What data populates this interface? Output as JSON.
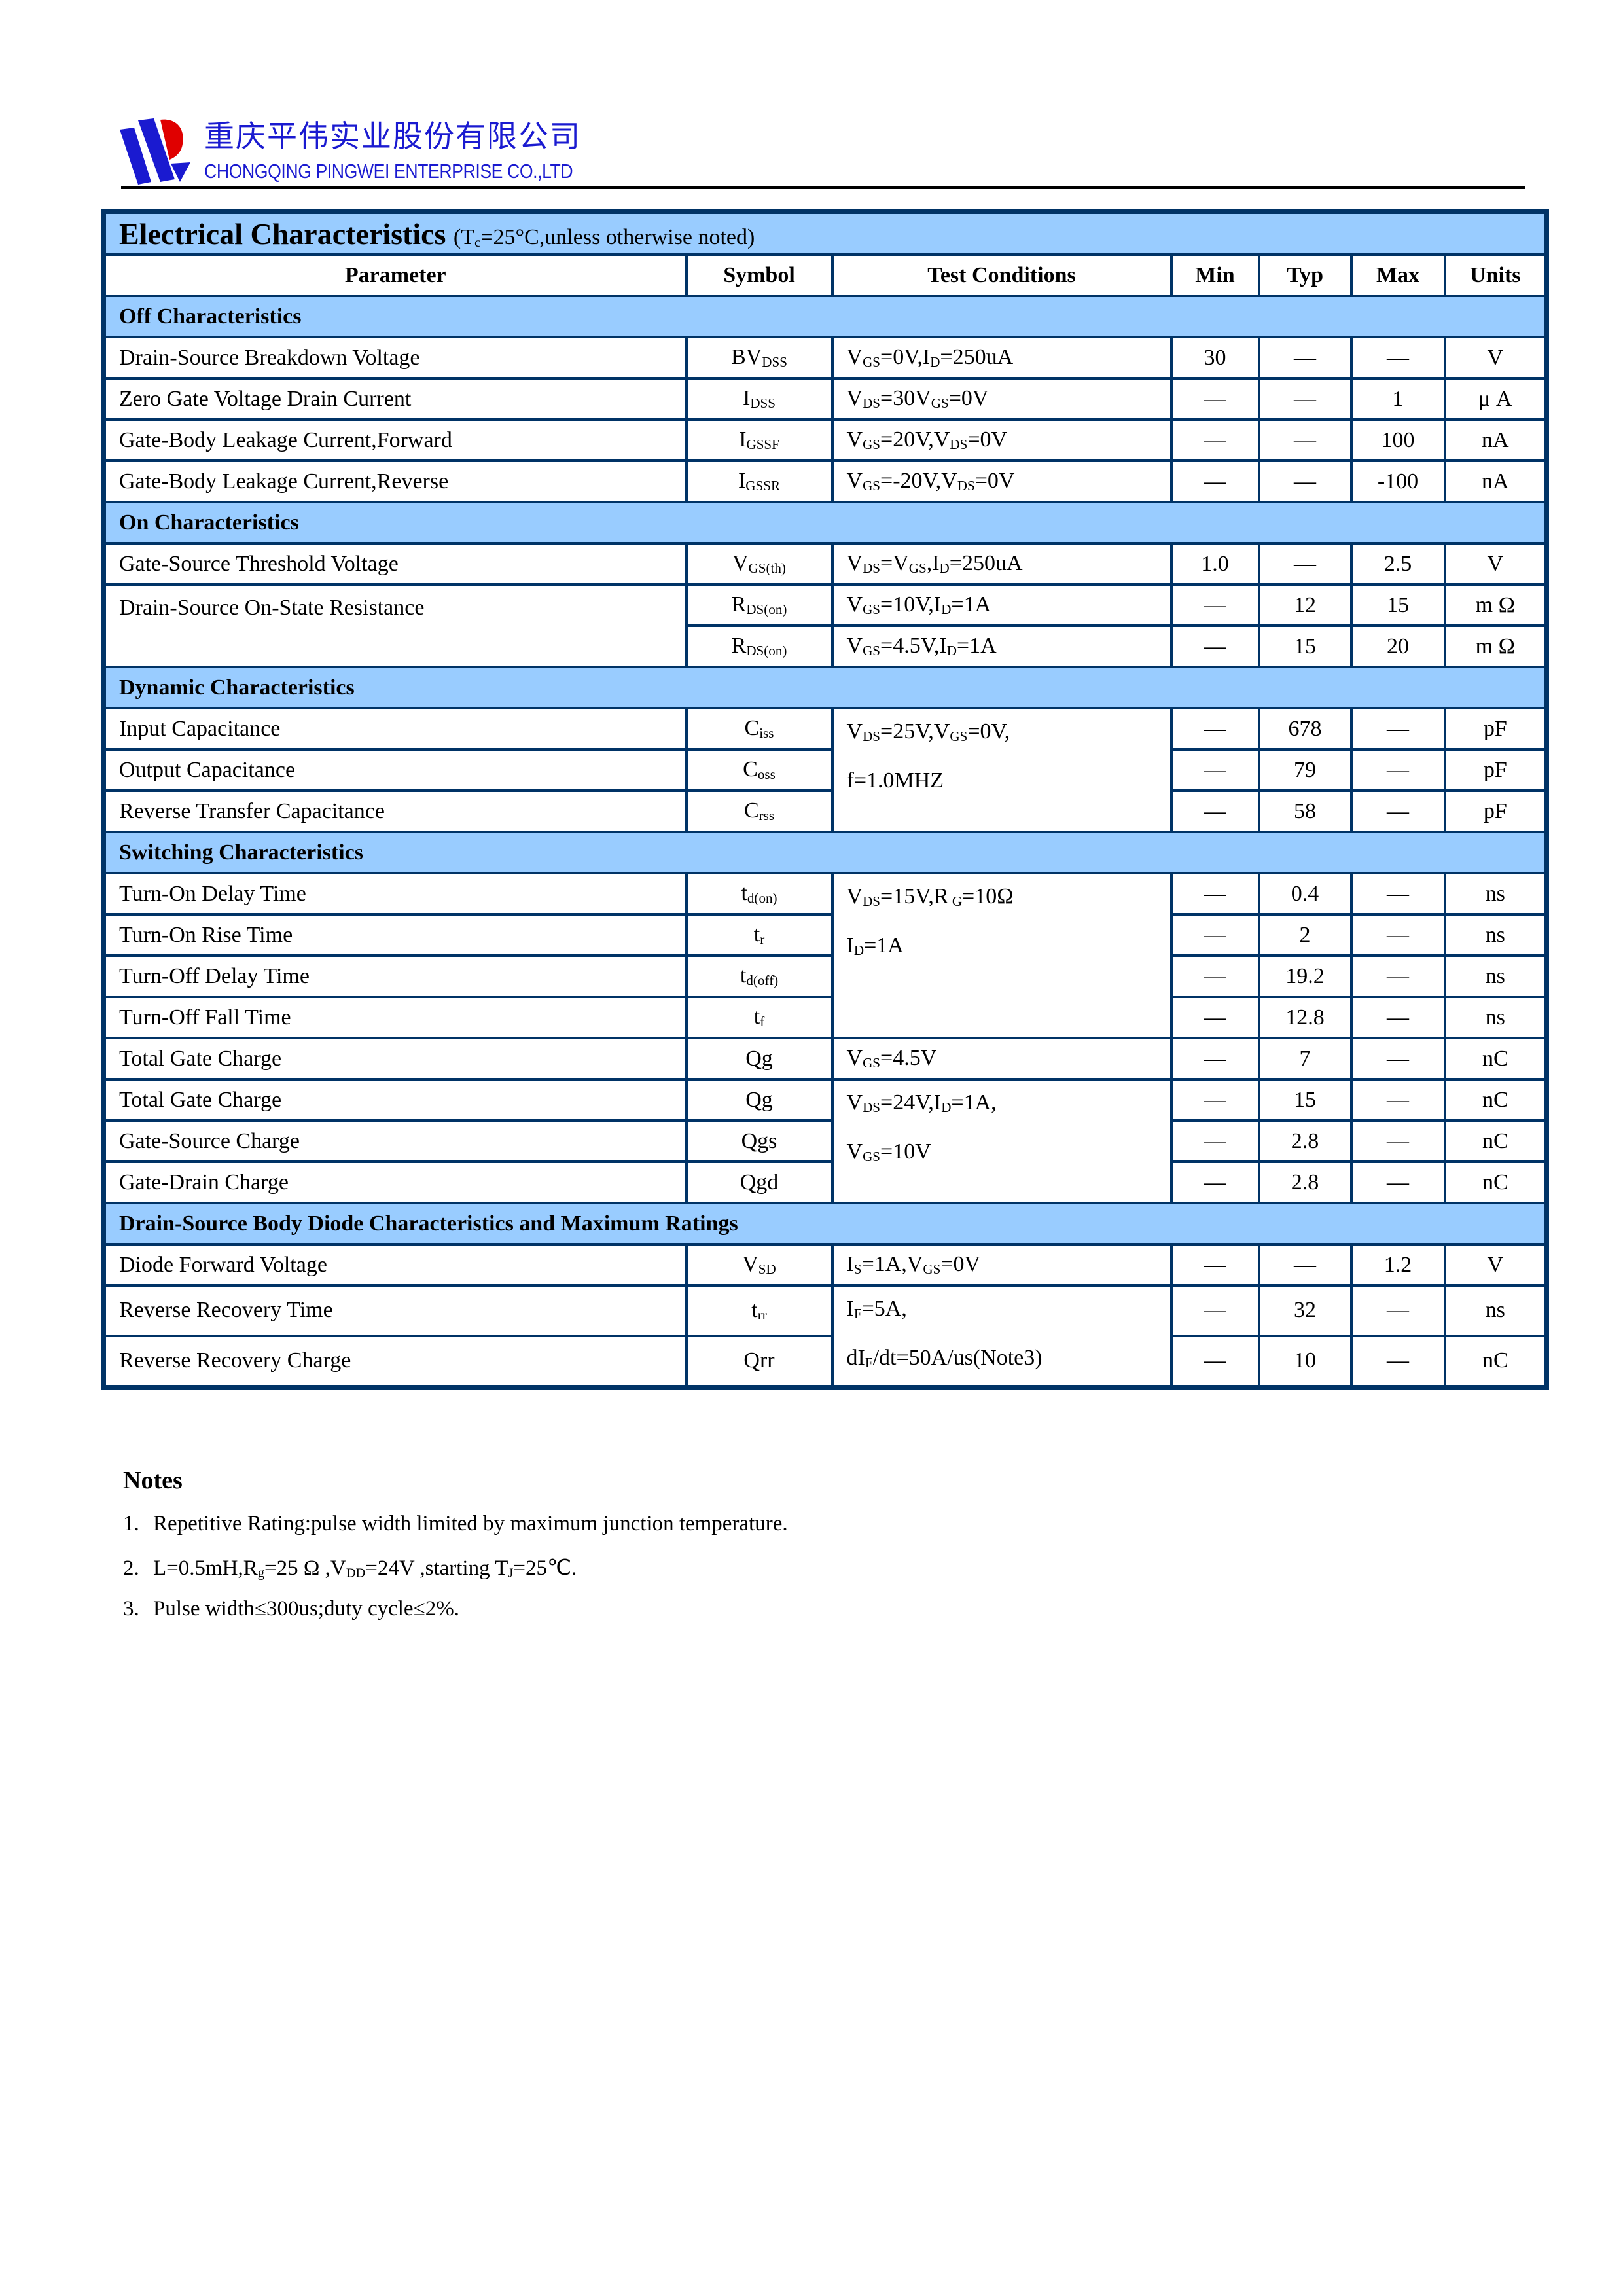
{
  "header": {
    "company_cn": "重庆平伟实业股份有限公司",
    "company_en": "CHONGQING PINGWEI ENTERPRISE CO.,LTD",
    "colors": {
      "logo_blue": "#1a1ad0",
      "logo_red": "#e00000"
    }
  },
  "table": {
    "title": "Electrical Characteristics",
    "title_note": "(T_{c}=25°C,unless otherwise noted)",
    "columns": [
      "Parameter",
      "Symbol",
      "Test Conditions",
      "Min",
      "Typ",
      "Max",
      "Units"
    ],
    "colors": {
      "border": "#003366",
      "section_fill": "#99ccff"
    },
    "sections": [
      {
        "title": "Off Characteristics",
        "rows": [
          {
            "param": "Drain-Source Breakdown Voltage",
            "symbol": "BV_{DSS}",
            "cond": [
              "V_{GS}=0V,I_{D}=250uA"
            ],
            "min": "30",
            "typ": "—",
            "max": "—",
            "unit": "V"
          },
          {
            "param": "Zero Gate Voltage Drain Current",
            "symbol": "I_{DSS}",
            "cond": [
              "V_{DS}=30V_{GS}=0V"
            ],
            "min": "—",
            "typ": "—",
            "max": "1",
            "unit": "μ A"
          },
          {
            "param": "Gate-Body Leakage Current,Forward",
            "symbol": "I_{GSSF}",
            "cond": [
              "V_{GS}=20V,V_{DS}=0V"
            ],
            "min": "—",
            "typ": "—",
            "max": "100",
            "unit": "nA"
          },
          {
            "param": "Gate-Body Leakage Current,Reverse",
            "symbol": "I_{GSSR}",
            "cond": [
              "V_{GS}=-20V,V_{DS}=0V"
            ],
            "min": "—",
            "typ": "—",
            "max": "-100",
            "unit": "nA"
          }
        ]
      },
      {
        "title": "On Characteristics",
        "rows": [
          {
            "param": "Gate-Source Threshold Voltage",
            "symbol": "V_{GS(th)}",
            "cond": [
              "V_{DS}=V_{GS},I_{D}=250uA"
            ],
            "min": "1.0",
            "typ": "—",
            "max": "2.5",
            "unit": "V"
          },
          {
            "param": "Drain-Source On-State Resistance",
            "param_span": 2,
            "symbol": "R_{DS(on)}",
            "cond": [
              "V_{GS}=10V,I_{D}=1A"
            ],
            "min": "—",
            "typ": "12",
            "max": "15",
            "unit": "m Ω"
          },
          {
            "symbol": "R_{DS(on)}",
            "cond": [
              "V_{GS}=4.5V,I_{D}=1A"
            ],
            "min": "—",
            "typ": "15",
            "max": "20",
            "unit": "m Ω"
          }
        ]
      },
      {
        "title": "Dynamic Characteristics",
        "rows": [
          {
            "param": "Input Capacitance",
            "symbol": "C_{iss}",
            "cond": [
              "V_{DS}=25V,V_{GS}=0V,",
              "f=1.0MHZ"
            ],
            "cond_span": 3,
            "min": "—",
            "typ": "678",
            "max": "—",
            "unit": "pF"
          },
          {
            "param": "Output Capacitance",
            "symbol": "C_{oss}",
            "min": "—",
            "typ": "79",
            "max": "—",
            "unit": "pF"
          },
          {
            "param": "Reverse Transfer Capacitance",
            "symbol": "C_{rss}",
            "min": "—",
            "typ": "58",
            "max": "—",
            "unit": "pF"
          }
        ]
      },
      {
        "title": "Switching Characteristics",
        "rows": [
          {
            "param": "Turn-On Delay Time",
            "symbol": "t_{d(on)}",
            "cond": [
              "V_{DS}=15V,R_{ G}=10Ω",
              "I_{D}=1A"
            ],
            "cond_span": 4,
            "min": "—",
            "typ": "0.4",
            "max": "—",
            "unit": "ns"
          },
          {
            "param": "Turn-On Rise Time",
            "symbol": "t_{r}",
            "min": "—",
            "typ": "2",
            "max": "—",
            "unit": "ns"
          },
          {
            "param": "Turn-Off Delay Time",
            "symbol": "t_{d(off)}",
            "min": "—",
            "typ": "19.2",
            "max": "—",
            "unit": "ns"
          },
          {
            "param": "Turn-Off Fall Time",
            "symbol": "t_{f}",
            "min": "—",
            "typ": "12.8",
            "max": "—",
            "unit": "ns"
          },
          {
            "param": "Total Gate Charge",
            "symbol": "Qg",
            "cond": [
              "V_{GS}=4.5V"
            ],
            "min": "—",
            "typ": "7",
            "max": "—",
            "unit": "nC"
          },
          {
            "param": "Total Gate Charge",
            "symbol": "Qg",
            "cond": [
              "V_{DS}=24V,I_{D}=1A,",
              "V_{GS}=10V"
            ],
            "cond_span": 3,
            "min": "—",
            "typ": "15",
            "max": "—",
            "unit": "nC"
          },
          {
            "param": "Gate-Source Charge",
            "symbol": "Qgs",
            "min": "—",
            "typ": "2.8",
            "max": "—",
            "unit": "nC"
          },
          {
            "param": "Gate-Drain Charge",
            "symbol": "Qgd",
            "min": "—",
            "typ": "2.8",
            "max": "—",
            "unit": "nC"
          }
        ]
      },
      {
        "title": "Drain-Source Body Diode Characteristics and Maximum Ratings",
        "rows": [
          {
            "param": "Diode Forward Voltage",
            "symbol": "V_{SD}",
            "cond": [
              "I_{S}=1A,V_{GS}=0V"
            ],
            "min": "—",
            "typ": "—",
            "max": "1.2",
            "unit": "V"
          },
          {
            "param": "Reverse Recovery Time",
            "symbol": "t_{rr}",
            "cond": [
              "I_{F}=5A,",
              "dI_{F}/dt=50A/us(Note3)"
            ],
            "cond_span": 2,
            "min": "—",
            "typ": "32",
            "max": "—",
            "unit": "ns"
          },
          {
            "param": "Reverse Recovery Charge",
            "symbol": "Qrr",
            "min": "—",
            "typ": "10",
            "max": "—",
            "unit": "nC"
          }
        ]
      }
    ]
  },
  "notes": {
    "title": "Notes",
    "items": [
      {
        "num": "1.",
        "text": "Repetitive Rating:pulse width limited by maximum junction temperature."
      },
      {
        "num": "2.",
        "text": "L=0.5mH,R_{g}=25 Ω ,V_{DD}=24V ,starting T_{J}=25℃."
      },
      {
        "num": "3.",
        "text": "Pulse width≤300us;duty cycle≤2%."
      }
    ]
  }
}
